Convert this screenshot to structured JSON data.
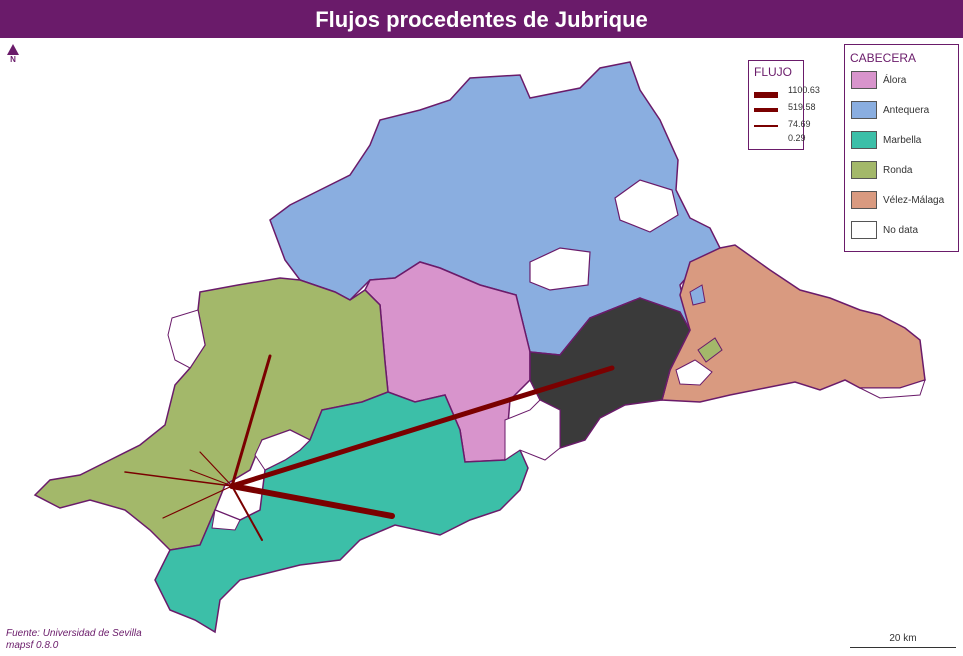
{
  "title": "Flujos procedentes de Jubrique",
  "north_label": "N",
  "flow_legend": {
    "title": "FLUJO",
    "values": [
      "1100.63",
      "519.58",
      "74.69",
      "0.29"
    ]
  },
  "cabecera_legend": {
    "title": "CABECERA",
    "items": [
      {
        "label": "Álora",
        "color": "#d894cc"
      },
      {
        "label": "Antequera",
        "color": "#8aaee0"
      },
      {
        "label": "Marbella",
        "color": "#3cbfa8"
      },
      {
        "label": "Ronda",
        "color": "#a3b86a"
      },
      {
        "label": "Vélez-Málaga",
        "color": "#d99a80"
      },
      {
        "label": "No data",
        "color": "#ffffff"
      }
    ]
  },
  "source_lines": [
    "Fuente: Universidad de Sevilla",
    "mapsf 0.8.0"
  ],
  "scale_label": "20 km",
  "colors": {
    "brand": "#6a1b6a",
    "flow": "#7a0000",
    "highlight": "#3a3a3a",
    "border": "#6a1b6a"
  }
}
